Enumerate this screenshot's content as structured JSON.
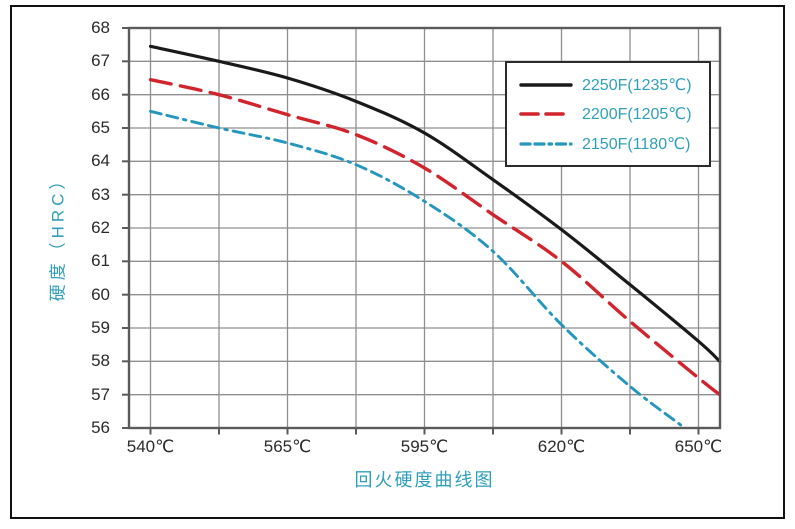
{
  "page": {
    "background": "#ffffff",
    "frame_border_color": "#111111"
  },
  "colors": {
    "grid_line": "#8f8f8f",
    "plot_border": "#5a5a5a",
    "tick_text": "#2b2b2b",
    "teal_text": "#2f9fbc",
    "series_black": "#1a1a1a",
    "series_red": "#d1242c",
    "series_teal": "#2596be"
  },
  "chart_data": {
    "type": "line",
    "title": "回火硬度曲线图",
    "title_position": "bottom",
    "ylabel": "硬度（HRC）",
    "xlabel_ticks": [
      "540℃",
      "565℃",
      "595℃",
      "620℃",
      "650℃"
    ],
    "ylim": [
      56,
      68
    ],
    "y_ticks": [
      68,
      67,
      66,
      65,
      64,
      63,
      62,
      61,
      60,
      59,
      58,
      57,
      56
    ],
    "grid": true,
    "legend_position": "top-right",
    "x_axis_note": "9 evenly spaced vertical gridlines; temperature labels on gridlines 1,3,5,7,9; unlabeled gridlines fall at 552.5, 580, 607.5, 635; curves of series 1-2 extend past the last gridline to the plot edge",
    "x_gridline_temps": [
      540,
      552.5,
      565,
      580,
      595,
      607.5,
      620,
      635,
      650
    ],
    "series": [
      {
        "name": "2250F(1235℃)",
        "color": "#1a1a1a",
        "style": "solid",
        "stroke_width": 3.2,
        "dash": "",
        "points_u_v": [
          [
            0,
            67.45
          ],
          [
            1,
            67.0
          ],
          [
            2,
            66.5
          ],
          [
            3,
            65.8
          ],
          [
            4,
            64.85
          ],
          [
            5,
            63.45
          ],
          [
            6,
            61.95
          ],
          [
            7,
            60.3
          ],
          [
            8,
            58.6
          ],
          [
            8.31,
            58.0
          ]
        ]
      },
      {
        "name": "2200F(1205℃)",
        "color": "#d1242c",
        "style": "dashed",
        "stroke_width": 3.4,
        "dash": "21 9.5",
        "points_u_v": [
          [
            0,
            66.45
          ],
          [
            1,
            66.0
          ],
          [
            2,
            65.4
          ],
          [
            3,
            64.8
          ],
          [
            4,
            63.8
          ],
          [
            5,
            62.4
          ],
          [
            6,
            61.0
          ],
          [
            7,
            59.2
          ],
          [
            8,
            57.5
          ],
          [
            8.31,
            57.0
          ]
        ]
      },
      {
        "name": "2150F(1180℃)",
        "color": "#2596be",
        "style": "dash-dot",
        "stroke_width": 2.9,
        "dash": "11 6 11 6 2.5 6",
        "points_u_v": [
          [
            0,
            65.5
          ],
          [
            1,
            65.0
          ],
          [
            2,
            64.55
          ],
          [
            3,
            63.9
          ],
          [
            4,
            62.8
          ],
          [
            5,
            61.3
          ],
          [
            6,
            59.1
          ],
          [
            7,
            57.25
          ],
          [
            7.8,
            56.0
          ]
        ]
      }
    ],
    "legend_samples": [
      {
        "dash": "",
        "width": 3.4
      },
      {
        "dash": "17 8",
        "width": 3.6
      },
      {
        "dash": "9 5 9 5 2.5 5",
        "width": 3.2
      }
    ]
  }
}
